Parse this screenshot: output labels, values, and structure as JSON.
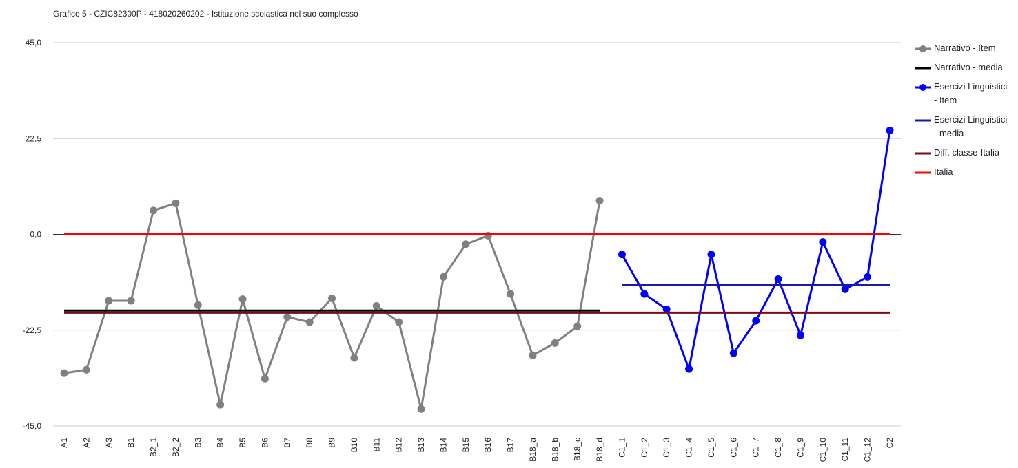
{
  "chart_data": {
    "type": "line",
    "title": "Grafico 5 - CZIC82300P - 418020260202 - Istituzione scolastica nel suo complesso",
    "categories": [
      "A1",
      "A2",
      "A3",
      "B1",
      "B2_1",
      "B2_2",
      "B3",
      "B4",
      "B5",
      "B6",
      "B7",
      "B8",
      "B9",
      "B10",
      "B11",
      "B12",
      "B13",
      "B14",
      "B15",
      "B16",
      "B17",
      "B18_a",
      "B18_b",
      "B18_c",
      "B18_d",
      "C1_1",
      "C1_2",
      "C1_3",
      "C1_4",
      "C1_5",
      "C1_6",
      "C1_7",
      "C1_8",
      "C1_9",
      "C1_10",
      "C1_11",
      "C1_12",
      "C2"
    ],
    "ylim": [
      -45,
      45
    ],
    "yticks": [
      {
        "value": 45,
        "label": "45,0"
      },
      {
        "value": 22.5,
        "label": "22,5"
      },
      {
        "value": 0,
        "label": "0,0"
      },
      {
        "value": -22.5,
        "label": "-22,5"
      },
      {
        "value": -45,
        "label": "-45,0"
      }
    ],
    "grid": true,
    "legend": "right",
    "series": [
      {
        "name": "Narrativo - Item",
        "color": "#808080",
        "marker": true,
        "values": [
          -32.6,
          -31.8,
          -15.6,
          -15.6,
          5.6,
          7.3,
          -16.6,
          -40.0,
          -15.2,
          -33.9,
          -19.4,
          -20.6,
          -15.0,
          -29.0,
          -16.8,
          -20.6,
          -41.0,
          -10.0,
          -2.3,
          -0.3,
          -14.0,
          -28.4,
          -25.5,
          -21.6,
          7.9,
          null,
          null,
          null,
          null,
          null,
          null,
          null,
          null,
          null,
          null,
          null,
          null,
          null
        ]
      },
      {
        "name": "Narrativo - media",
        "color": "#000000",
        "marker": false,
        "values": [
          -17.9,
          -17.9,
          -17.9,
          -17.9,
          -17.9,
          -17.9,
          -17.9,
          -17.9,
          -17.9,
          -17.9,
          -17.9,
          -17.9,
          -17.9,
          -17.9,
          -17.9,
          -17.9,
          -17.9,
          -17.9,
          -17.9,
          -17.9,
          -17.9,
          -17.9,
          -17.9,
          -17.9,
          -17.9,
          null,
          null,
          null,
          null,
          null,
          null,
          null,
          null,
          null,
          null,
          null,
          null,
          null
        ]
      },
      {
        "name": "Esercizi Linguistici - Item",
        "color": "#0000ff",
        "marker": true,
        "values": [
          null,
          null,
          null,
          null,
          null,
          null,
          null,
          null,
          null,
          null,
          null,
          null,
          null,
          null,
          null,
          null,
          null,
          null,
          null,
          null,
          null,
          null,
          null,
          null,
          null,
          -4.7,
          -14.0,
          -17.6,
          -31.6,
          -4.7,
          -27.9,
          -20.3,
          -10.5,
          -23.7,
          -1.8,
          -12.9,
          -10.0,
          24.4
        ]
      },
      {
        "name": "Esercizi Linguistici - media",
        "color": "#1a1aa0",
        "marker": false,
        "values": [
          null,
          null,
          null,
          null,
          null,
          null,
          null,
          null,
          null,
          null,
          null,
          null,
          null,
          null,
          null,
          null,
          null,
          null,
          null,
          null,
          null,
          null,
          null,
          null,
          null,
          -11.8,
          -11.8,
          -11.8,
          -11.8,
          -11.8,
          -11.8,
          -11.8,
          -11.8,
          -11.8,
          -11.8,
          -11.8,
          -11.8,
          -11.8
        ]
      },
      {
        "name": "Diff. classe-Italia",
        "color": "#7b0d12",
        "marker": false,
        "values": [
          -18.4,
          -18.4,
          -18.4,
          -18.4,
          -18.4,
          -18.4,
          -18.4,
          -18.4,
          -18.4,
          -18.4,
          -18.4,
          -18.4,
          -18.4,
          -18.4,
          -18.4,
          -18.4,
          -18.4,
          -18.4,
          -18.4,
          -18.4,
          -18.4,
          -18.4,
          -18.4,
          -18.4,
          -18.4,
          -18.4,
          -18.4,
          -18.4,
          -18.4,
          -18.4,
          -18.4,
          -18.4,
          -18.4,
          -18.4,
          -18.4,
          -18.4,
          -18.4,
          -18.4
        ]
      },
      {
        "name": "Italia",
        "color": "#ff0000",
        "marker": false,
        "values": [
          0,
          0,
          0,
          0,
          0,
          0,
          0,
          0,
          0,
          0,
          0,
          0,
          0,
          0,
          0,
          0,
          0,
          0,
          0,
          0,
          0,
          0,
          0,
          0,
          0,
          0,
          0,
          0,
          0,
          0,
          0,
          0,
          0,
          0,
          0,
          0,
          0,
          0
        ]
      }
    ]
  }
}
